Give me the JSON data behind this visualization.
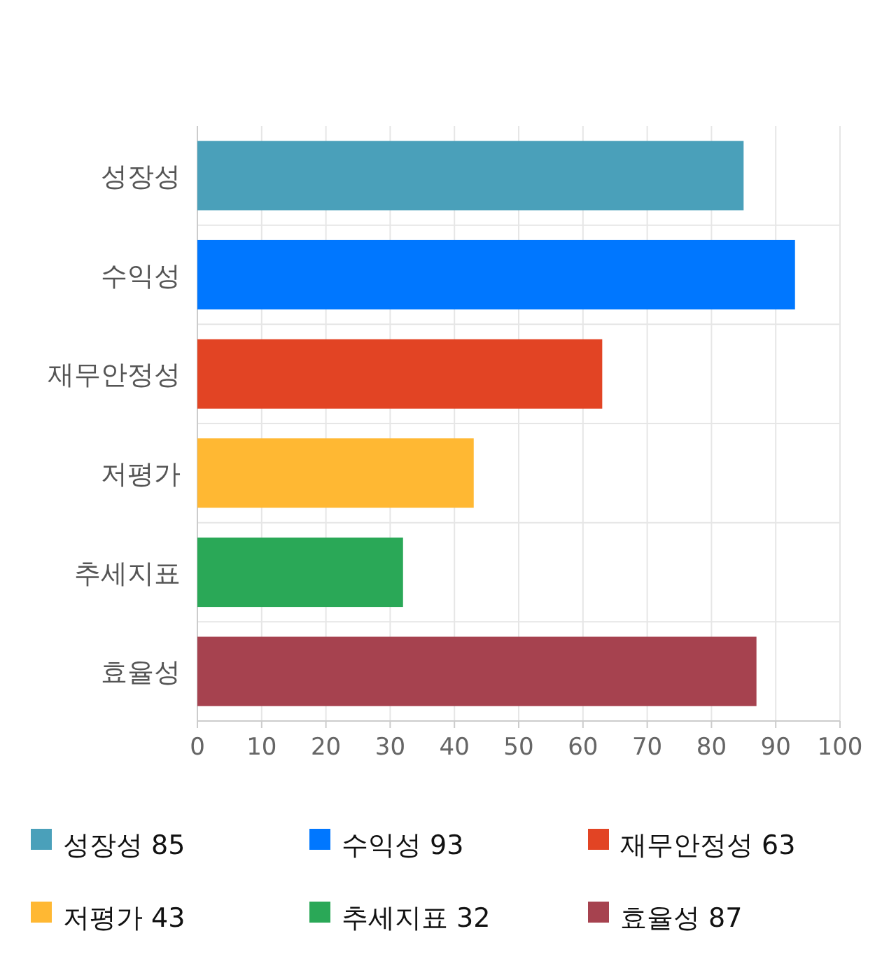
{
  "chart_data": {
    "type": "bar",
    "orientation": "horizontal",
    "stacked": true,
    "categories": [
      "성장성",
      "수익성",
      "재무안정성",
      "저평가",
      "추세지표",
      "효율성"
    ],
    "series": [
      {
        "name": "성장성 85",
        "color": "#4aa0ba",
        "values": [
          85,
          null,
          null,
          null,
          null,
          null
        ]
      },
      {
        "name": "수익성 93",
        "color": "#0077ff",
        "values": [
          null,
          93,
          null,
          null,
          null,
          null
        ]
      },
      {
        "name": "재무안정성 63",
        "color": "#e24424",
        "values": [
          null,
          null,
          63,
          null,
          null,
          null
        ]
      },
      {
        "name": "저평가 43",
        "color": "#ffb833",
        "values": [
          null,
          null,
          null,
          43,
          null,
          null
        ]
      },
      {
        "name": "추세지표 32",
        "color": "#2aa857",
        "values": [
          null,
          null,
          null,
          null,
          32,
          null
        ]
      },
      {
        "name": "효율성 87",
        "color": "#a6424f",
        "values": [
          null,
          null,
          null,
          null,
          null,
          87
        ]
      }
    ],
    "xlim": [
      0,
      100
    ],
    "xticks": [
      0,
      10,
      20,
      30,
      40,
      50,
      60,
      70,
      80,
      90,
      100
    ],
    "grid": true,
    "legend": "bottom"
  }
}
